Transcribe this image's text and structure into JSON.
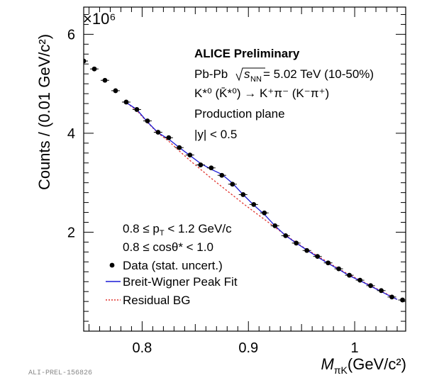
{
  "chart_data": {
    "type": "scatter",
    "xlabel": {
      "main": "M",
      "sub": "πK",
      "unit": "(GeV/c²)"
    },
    "ylabel": "Counts / (0.01 GeV/c²)",
    "y_multiplier": "×10⁶",
    "xlim": [
      0.745,
      1.048
    ],
    "ylim": [
      0.0,
      6.55
    ],
    "x_ticks": [
      0.8,
      0.9,
      1.0
    ],
    "x_tick_labels": [
      "0.8",
      "0.9",
      "1"
    ],
    "y_ticks": [
      2,
      4,
      6
    ],
    "y_tick_labels": [
      "2",
      "4",
      "6"
    ],
    "series": [
      {
        "name": "Data (stat. uncert.)",
        "style": "points",
        "color": "#000000",
        "x": [
          0.745,
          0.755,
          0.765,
          0.775,
          0.785,
          0.795,
          0.805,
          0.815,
          0.825,
          0.835,
          0.845,
          0.855,
          0.865,
          0.875,
          0.885,
          0.895,
          0.905,
          0.915,
          0.925,
          0.935,
          0.945,
          0.955,
          0.965,
          0.975,
          0.985,
          0.995,
          1.005,
          1.015,
          1.025,
          1.035,
          1.045
        ],
        "y": [
          5.46,
          5.3,
          5.07,
          4.86,
          4.63,
          4.48,
          4.25,
          4.02,
          3.91,
          3.71,
          3.56,
          3.36,
          3.3,
          3.15,
          2.97,
          2.76,
          2.56,
          2.39,
          2.13,
          1.93,
          1.78,
          1.63,
          1.51,
          1.38,
          1.26,
          1.13,
          1.03,
          0.92,
          0.82,
          0.69,
          0.63
        ]
      },
      {
        "name": "Breit-Wigner Peak Fit",
        "style": "line",
        "color": "#1a1ad6",
        "x": [
          0.783,
          0.795,
          0.805,
          0.815,
          0.825,
          0.835,
          0.845,
          0.855,
          0.865,
          0.875,
          0.885,
          0.895,
          0.905,
          0.915,
          0.925,
          0.935,
          0.945,
          0.955,
          0.965,
          0.975,
          0.985,
          0.995,
          1.005,
          1.015,
          1.025,
          1.035,
          1.04
        ],
        "y": [
          4.65,
          4.48,
          4.23,
          4.01,
          3.88,
          3.71,
          3.55,
          3.39,
          3.27,
          3.17,
          2.99,
          2.76,
          2.55,
          2.36,
          2.13,
          1.93,
          1.78,
          1.64,
          1.5,
          1.37,
          1.25,
          1.12,
          1.02,
          0.91,
          0.8,
          0.69,
          0.64
        ]
      },
      {
        "name": "Residual BG",
        "style": "dashed",
        "color": "#e0302a",
        "x": [
          0.783,
          0.795,
          0.805,
          0.815,
          0.825,
          0.835,
          0.845,
          0.855,
          0.865,
          0.875,
          0.885,
          0.895,
          0.905,
          0.915,
          0.925,
          0.935,
          0.945,
          0.955,
          0.965,
          0.975,
          0.985,
          0.995,
          1.005,
          1.015,
          1.025,
          1.035,
          1.04
        ],
        "y": [
          4.65,
          4.46,
          4.22,
          4.0,
          3.84,
          3.64,
          3.45,
          3.27,
          3.09,
          2.92,
          2.75,
          2.58,
          2.42,
          2.26,
          2.1,
          1.94,
          1.79,
          1.65,
          1.52,
          1.39,
          1.26,
          1.14,
          1.03,
          0.92,
          0.81,
          0.7,
          0.64
        ]
      }
    ],
    "annotations_top": {
      "title": "ALICE Preliminary",
      "system_pre": "Pb-Pb ",
      "system_sqrt": "s",
      "system_sub": "NN",
      "system_post": " = 5.02 TeV (10-50%)",
      "decay": "K*⁰ (K̄*⁰) → K⁺π⁻ (K⁻π⁺)",
      "plane": "Production plane",
      "rapidity": "|y| < 0.5"
    },
    "annotations_bottom": {
      "pt_range": "0.8 ≤ p_T < 1.2 GeV/c",
      "pt_pre": "0.8 ≤ p",
      "pt_sub": "T",
      "pt_post": " < 1.2 GeV/c",
      "cos_range": "0.8 ≤ cosθ* < 1.0"
    },
    "legend": {
      "placement": "bottom-left",
      "entries": [
        "Data (stat. uncert.)",
        "Breit-Wigner Peak Fit",
        "Residual BG"
      ]
    },
    "grid": false
  },
  "footer_id": "ALI-PREL-156826"
}
